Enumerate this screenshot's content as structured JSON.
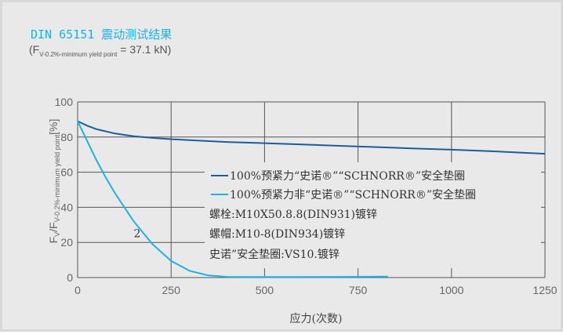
{
  "header": {
    "title": "DIN 65151 震动测试结果",
    "subtitle_prefix": "(F",
    "subtitle_sub": "V-0.2%-minimum yield point",
    "subtitle_suffix": " = 37.1 kN)"
  },
  "chart_data": {
    "type": "line",
    "xlabel": "应力(次数)",
    "ylabel_main": "F",
    "ylabel_sub1": "V",
    "ylabel_mid": "/F",
    "ylabel_sub2": "V-0.2%-minimum yield point",
    "ylabel_unit": "[%]",
    "xlim": [
      0,
      1250
    ],
    "ylim": [
      0,
      100
    ],
    "xticks": [
      0,
      250,
      500,
      750,
      1000,
      1250
    ],
    "yticks": [
      0,
      20,
      40,
      60,
      80,
      100
    ],
    "grid": true,
    "series": [
      {
        "name": "100%预紧力“史诺®”“SCHNORR®”安全垫圈",
        "color": "#1a5e9a",
        "x": [
          0,
          25,
          50,
          100,
          150,
          200,
          250,
          300,
          400,
          500,
          600,
          700,
          800,
          900,
          1000,
          1100,
          1200,
          1250
        ],
        "y": [
          89,
          86.5,
          84.5,
          82,
          80.5,
          79.5,
          78.8,
          78.2,
          77.2,
          76.5,
          75.8,
          75,
          74.3,
          73.5,
          72.8,
          72,
          71,
          70.5
        ]
      },
      {
        "name": "100%预紧力非“史诺®”“SCHNORR®”安全垫圈",
        "color": "#1eb1e6",
        "x": [
          0,
          25,
          50,
          75,
          100,
          150,
          200,
          250,
          300,
          350,
          400,
          450,
          500,
          600,
          700,
          830
        ],
        "y": [
          89,
          78,
          67,
          57,
          48,
          32,
          19,
          9.5,
          3.8,
          1.2,
          0.4,
          0.3,
          0.3,
          0.3,
          0.4,
          0.6
        ]
      }
    ],
    "annotations": [
      {
        "text": "2",
        "x": 150,
        "y": 23
      }
    ],
    "notes": [
      "螺栓:M10X50.8.8(DIN931)镀锌",
      "螺帽:M10-8(DIN934)镀锌",
      "史诺”安全垫圈:VS10.镀锌"
    ]
  }
}
